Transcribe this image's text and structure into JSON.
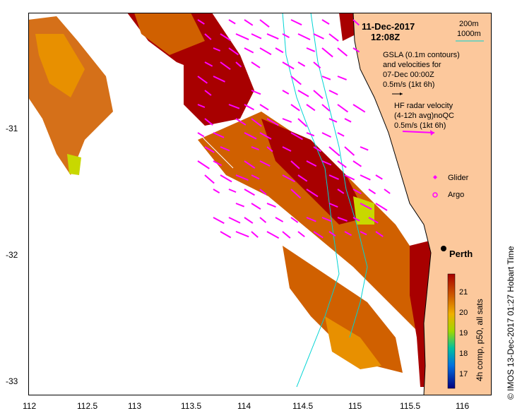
{
  "header": {
    "date": "11-Dec-2017",
    "time": "12:08Z"
  },
  "contour_legend": {
    "line1": "200m",
    "line2": "1000m",
    "line2_color": "#00d4d4"
  },
  "gsla_legend": {
    "line1": "GSLA (0.1m contours)",
    "line2": "and velocities for",
    "line3": "07-Dec 00:00Z",
    "line4": "0.5m/s (1kt 6h)"
  },
  "hf_legend": {
    "line1": "HF radar velocity",
    "line2": "(4-12h avg)noQC",
    "line3": "0.5m/s (1kt 6h)",
    "arrow_color": "#ff00ff"
  },
  "markers": {
    "glider": "Glider",
    "argo": "Argo",
    "city": "Perth"
  },
  "colorbar": {
    "label": "4h comp, p50, all sats",
    "ticks": [
      "21",
      "20",
      "19",
      "18",
      "17"
    ]
  },
  "side_caption": "© IMOS 13-Dec-2017 01:27 Hobart Time",
  "x_axis": {
    "ticks": [
      "112",
      "112.5",
      "113",
      "113.5",
      "114",
      "114.5",
      "115",
      "115.5",
      "116"
    ]
  },
  "y_axis": {
    "ticks": [
      "-31",
      "-32",
      "-33"
    ]
  },
  "colors": {
    "land": "#fcc89c",
    "sst_hot": "#a80000",
    "sst_warm": "#d06000",
    "sst_mid": "#e89000",
    "sst_cool": "#c8d800",
    "vector": "#ff00ff",
    "current_red": "#ff0000",
    "bathy": "#00d4d4"
  }
}
